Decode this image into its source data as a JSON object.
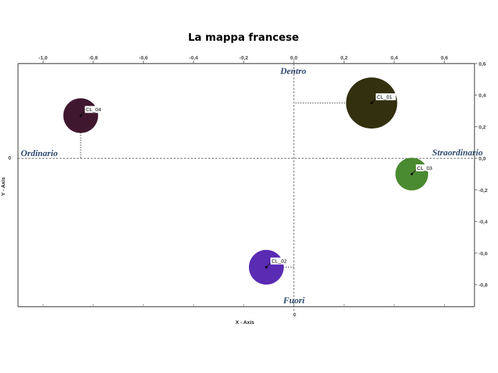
{
  "chart_data": {
    "type": "scatter",
    "title": "La mappa francese",
    "xlabel": "X - Axis",
    "ylabel": "Y - Axis",
    "xlim": [
      -1.1,
      0.72
    ],
    "ylim": [
      -0.94,
      0.6
    ],
    "x_ticks": [
      "-1,0",
      "-0,8",
      "-0,6",
      "-0,4",
      "-0,2",
      "0,0",
      "0,2",
      "0,4",
      "0,6"
    ],
    "y_ticks": [
      "0,6",
      "0,4",
      "0,2",
      "0,0",
      "-0,2",
      "-0,4",
      "-0,6",
      "-0,8"
    ],
    "x_tick_values": [
      -1.0,
      -0.8,
      -0.6,
      -0.4,
      -0.2,
      0.0,
      0.2,
      0.4,
      0.6
    ],
    "y_tick_values": [
      0.6,
      0.4,
      0.2,
      0.0,
      -0.2,
      -0.4,
      -0.6,
      -0.8
    ],
    "zero_label_x": "0",
    "zero_label_y": "0",
    "quadrant_labels": {
      "top": "Dentro",
      "bottom": "Fuori",
      "left": "Ordinario",
      "right": "Straordinario"
    },
    "points": [
      {
        "label": "CL_01",
        "x": 0.31,
        "y": 0.35,
        "size": 1.0,
        "color": "#33300f"
      },
      {
        "label": "CL_02",
        "x": -0.11,
        "y": -0.69,
        "size": 0.68,
        "color": "#5a2bb3"
      },
      {
        "label": "CL_03",
        "x": 0.47,
        "y": -0.1,
        "size": 0.64,
        "color": "#4a8a30"
      },
      {
        "label": "CL_04",
        "x": -0.85,
        "y": 0.27,
        "size": 0.68,
        "color": "#3f1830"
      }
    ]
  }
}
